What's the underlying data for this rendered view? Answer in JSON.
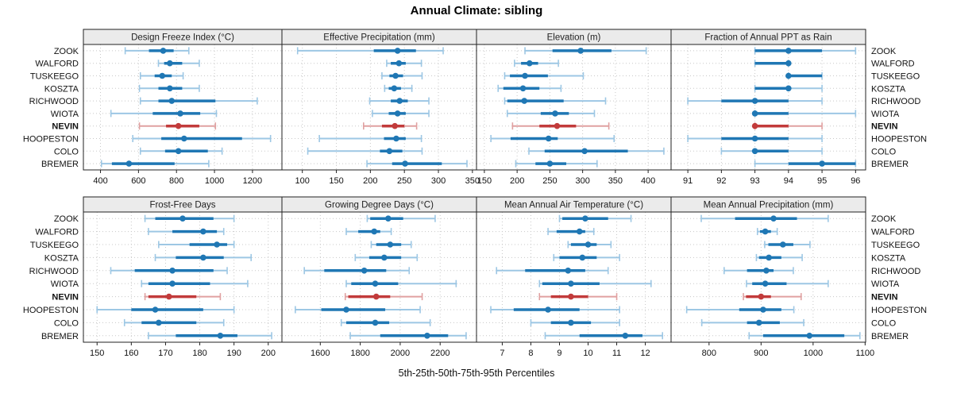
{
  "title": "Annual Climate: sibling",
  "caption": "5th-25th-50th-75th-95th Percentiles",
  "colors": {
    "series_main": "#1f77b4",
    "series_light": "#9dc7e4",
    "highlight_main": "#c23b3b",
    "highlight_light": "#e0a1a1",
    "strip_bg": "#ebebeb",
    "panel_border": "#222222",
    "grid": "#c8c8c8",
    "label_text": "#111111"
  },
  "chart_data": {
    "type": "scatter",
    "subtype": "five-number-percentile-intervals",
    "title": "Annual Climate: sibling",
    "xlabel": "5th-25th-50th-75th-95th Percentiles",
    "legend": "none",
    "grid": "dotted",
    "stations": [
      "ZOOK",
      "WALFORD",
      "TUSKEEGO",
      "KOSZTA",
      "RICHWOOD",
      "WIOTA",
      "NEVIN",
      "HOOPESTON",
      "COLO",
      "BREMER"
    ],
    "highlight_station": "NEVIN",
    "percentile_order": [
      5,
      25,
      50,
      75,
      95
    ],
    "panels": [
      {
        "title": "Design Freeze Index (°C)",
        "xlim": [
          310,
          1355
        ],
        "ticks": [
          400,
          600,
          800,
          1000,
          1200
        ],
        "values": [
          [
            530,
            655,
            730,
            785,
            865
          ],
          [
            705,
            735,
            765,
            830,
            920
          ],
          [
            610,
            685,
            725,
            775,
            835
          ],
          [
            605,
            705,
            765,
            830,
            920
          ],
          [
            610,
            705,
            775,
            1005,
            1225
          ],
          [
            455,
            675,
            820,
            925,
            1010
          ],
          [
            605,
            745,
            810,
            920,
            1005
          ],
          [
            570,
            720,
            840,
            1145,
            1295
          ],
          [
            610,
            740,
            810,
            965,
            1040
          ],
          [
            405,
            460,
            550,
            790,
            970
          ]
        ]
      },
      {
        "title": "Effective Precipitation (mm)",
        "xlim": [
          70,
          356
        ],
        "ticks": [
          100,
          150,
          200,
          250,
          300,
          350
        ],
        "values": [
          [
            93,
            205,
            240,
            267,
            307
          ],
          [
            224,
            230,
            242,
            252,
            275
          ],
          [
            217,
            228,
            237,
            248,
            276
          ],
          [
            221,
            227,
            235,
            245,
            261
          ],
          [
            199,
            230,
            243,
            255,
            286
          ],
          [
            203,
            227,
            240,
            252,
            286
          ],
          [
            190,
            217,
            236,
            250,
            268
          ],
          [
            125,
            220,
            238,
            252,
            275
          ],
          [
            108,
            214,
            228,
            247,
            276
          ],
          [
            195,
            232,
            251,
            305,
            342
          ]
        ]
      },
      {
        "title": "Elevation (m)",
        "xlim": [
          138,
          435
        ],
        "ticks": [
          150,
          200,
          250,
          300,
          350,
          400
        ],
        "values": [
          [
            212,
            254,
            297,
            344,
            397
          ],
          [
            196,
            206,
            219,
            232,
            263
          ],
          [
            181,
            189,
            212,
            247,
            301
          ],
          [
            171,
            179,
            209,
            234,
            267
          ],
          [
            181,
            185,
            211,
            271,
            335
          ],
          [
            185,
            236,
            258,
            279,
            318
          ],
          [
            193,
            234,
            261,
            290,
            340
          ],
          [
            160,
            190,
            248,
            262,
            348
          ],
          [
            218,
            242,
            303,
            369,
            424
          ],
          [
            198,
            228,
            250,
            275,
            322
          ]
        ]
      },
      {
        "title": "Fraction of Annual PPT as Rain",
        "xlim": [
          90.5,
          96.3
        ],
        "ticks": [
          91,
          92,
          93,
          94,
          95,
          96
        ],
        "values": [
          [
            93,
            93,
            94,
            95,
            96
          ],
          [
            93,
            93,
            94,
            94,
            94
          ],
          [
            94,
            94,
            94,
            95,
            95
          ],
          [
            93,
            93,
            94,
            94,
            95
          ],
          [
            91,
            92,
            93,
            94,
            95
          ],
          [
            93,
            93,
            93,
            94,
            96
          ],
          [
            93,
            93,
            93,
            94,
            95
          ],
          [
            91,
            92,
            93,
            94,
            95
          ],
          [
            92,
            93,
            93,
            94,
            95
          ],
          [
            93,
            94,
            95,
            96,
            96
          ]
        ]
      },
      {
        "title": "Frost-Free Days",
        "xlim": [
          146,
          204
        ],
        "ticks": [
          150,
          160,
          170,
          180,
          190,
          200
        ],
        "values": [
          [
            164,
            167,
            175,
            184,
            190
          ],
          [
            165,
            172,
            181,
            185,
            187
          ],
          [
            168,
            177,
            185,
            188,
            190
          ],
          [
            167,
            173,
            181,
            187,
            195
          ],
          [
            154,
            161,
            172,
            184,
            188
          ],
          [
            163,
            165,
            172,
            183,
            194
          ],
          [
            164,
            165,
            171,
            179,
            186
          ],
          [
            150,
            160,
            167,
            181,
            190
          ],
          [
            158,
            163,
            168,
            179,
            187
          ],
          [
            165,
            173,
            186,
            191,
            201
          ]
        ]
      },
      {
        "title": "Growing Degree Days (°C)",
        "xlim": [
          1408,
          2382
        ],
        "ticks": [
          1600,
          1800,
          2000,
          2200
        ],
        "values": [
          [
            1835,
            1850,
            1940,
            2015,
            2175
          ],
          [
            1730,
            1790,
            1870,
            1900,
            1955
          ],
          [
            1855,
            1880,
            1950,
            2005,
            2055
          ],
          [
            1775,
            1845,
            1920,
            2005,
            2085
          ],
          [
            1520,
            1620,
            1820,
            1930,
            2045
          ],
          [
            1730,
            1755,
            1875,
            1990,
            2280
          ],
          [
            1725,
            1740,
            1880,
            1950,
            2110
          ],
          [
            1475,
            1605,
            1730,
            1925,
            2100
          ],
          [
            1705,
            1730,
            1875,
            1945,
            2150
          ],
          [
            1750,
            1900,
            2135,
            2240,
            2330
          ]
        ]
      },
      {
        "title": "Mean Annual Air Temperature (°C)",
        "xlim": [
          6.1,
          12.9
        ],
        "ticks": [
          7,
          8,
          9,
          10,
          11,
          12
        ],
        "values": [
          [
            9.0,
            9.1,
            9.9,
            10.7,
            11.5
          ],
          [
            8.6,
            8.9,
            9.7,
            9.9,
            10.2
          ],
          [
            9.3,
            9.4,
            10.0,
            10.3,
            10.8
          ],
          [
            8.8,
            9.0,
            9.8,
            10.3,
            11.1
          ],
          [
            6.8,
            7.8,
            9.3,
            9.9,
            10.7
          ],
          [
            8.3,
            8.4,
            9.4,
            10.4,
            12.2
          ],
          [
            8.3,
            8.7,
            9.4,
            10.0,
            11.0
          ],
          [
            6.6,
            7.4,
            8.6,
            9.7,
            11.1
          ],
          [
            8.0,
            8.7,
            9.4,
            10.1,
            11.1
          ],
          [
            8.5,
            9.7,
            11.3,
            11.9,
            12.6
          ]
        ]
      },
      {
        "title": "Mean Annual Precipitation (mm)",
        "xlim": [
          727,
          1101
        ],
        "ticks": [
          800,
          900,
          1000,
          1100
        ],
        "values": [
          [
            785,
            850,
            924,
            969,
            1029
          ],
          [
            893,
            898,
            908,
            919,
            931
          ],
          [
            907,
            914,
            942,
            962,
            994
          ],
          [
            891,
            896,
            915,
            939,
            979
          ],
          [
            829,
            873,
            910,
            924,
            962
          ],
          [
            872,
            883,
            908,
            949,
            1029
          ],
          [
            866,
            871,
            900,
            919,
            977
          ],
          [
            757,
            858,
            904,
            939,
            963
          ],
          [
            786,
            873,
            896,
            936,
            982
          ],
          [
            877,
            904,
            993,
            1060,
            1090
          ]
        ]
      }
    ]
  }
}
